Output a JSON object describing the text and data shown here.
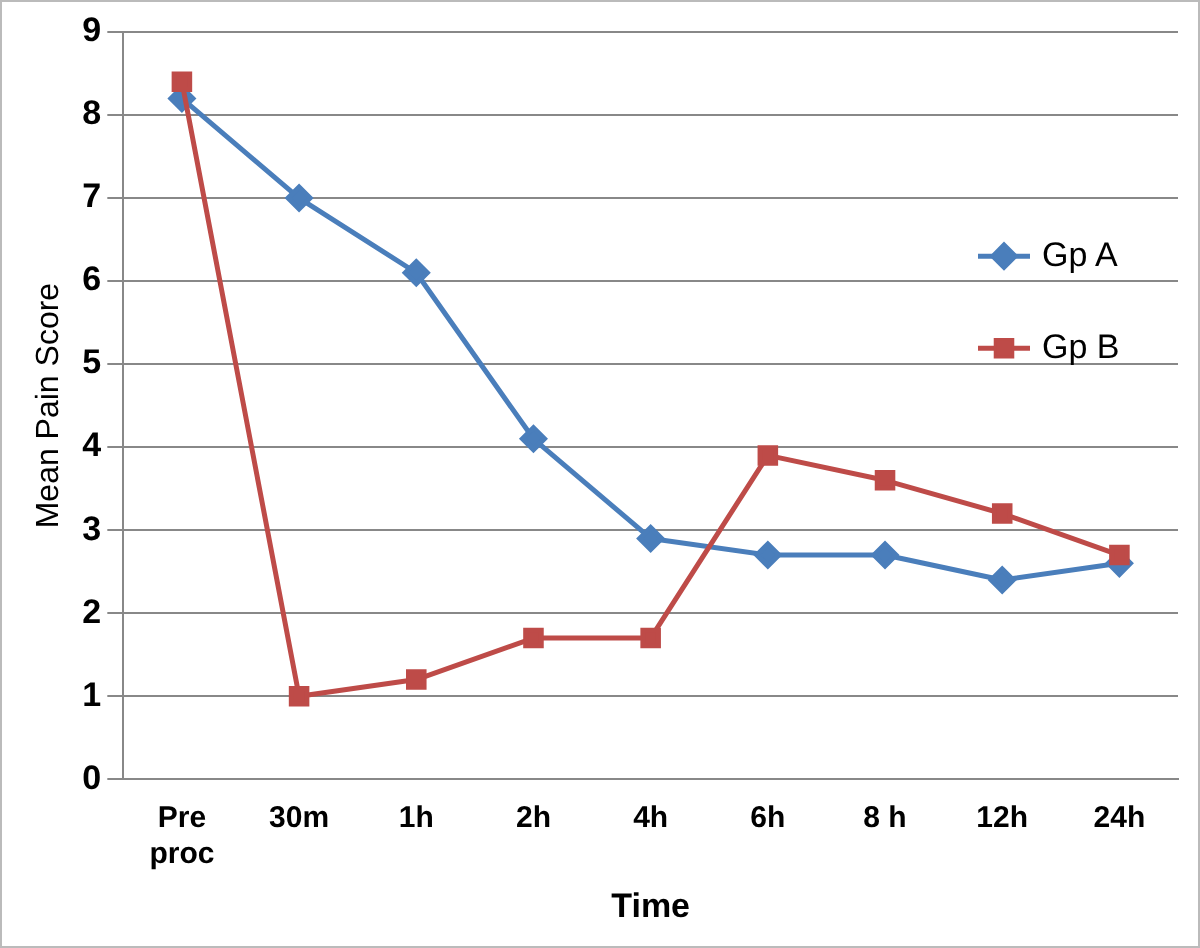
{
  "chart_data": {
    "type": "line",
    "xlabel": "Time",
    "ylabel": "Mean Pain Score",
    "categories": [
      "Pre\nproc",
      "30m",
      "1h",
      "2h",
      "4h",
      "6h",
      "8 h",
      "12h",
      "24h"
    ],
    "series": [
      {
        "name": "Gp A",
        "color": "#4a7ebb",
        "marker": "diamond",
        "values": [
          8.2,
          7.0,
          6.1,
          4.1,
          2.9,
          2.7,
          2.7,
          2.4,
          2.6
        ]
      },
      {
        "name": "Gp B",
        "color": "#be4b48",
        "marker": "square",
        "values": [
          8.4,
          1.0,
          1.2,
          1.7,
          1.7,
          3.9,
          3.6,
          3.2,
          2.7
        ]
      }
    ],
    "ylim": [
      0,
      9
    ],
    "yticks": [
      0,
      1,
      2,
      3,
      4,
      5,
      6,
      7,
      8,
      9
    ],
    "grid": "y",
    "legend": "right",
    "line_style": "solid"
  }
}
